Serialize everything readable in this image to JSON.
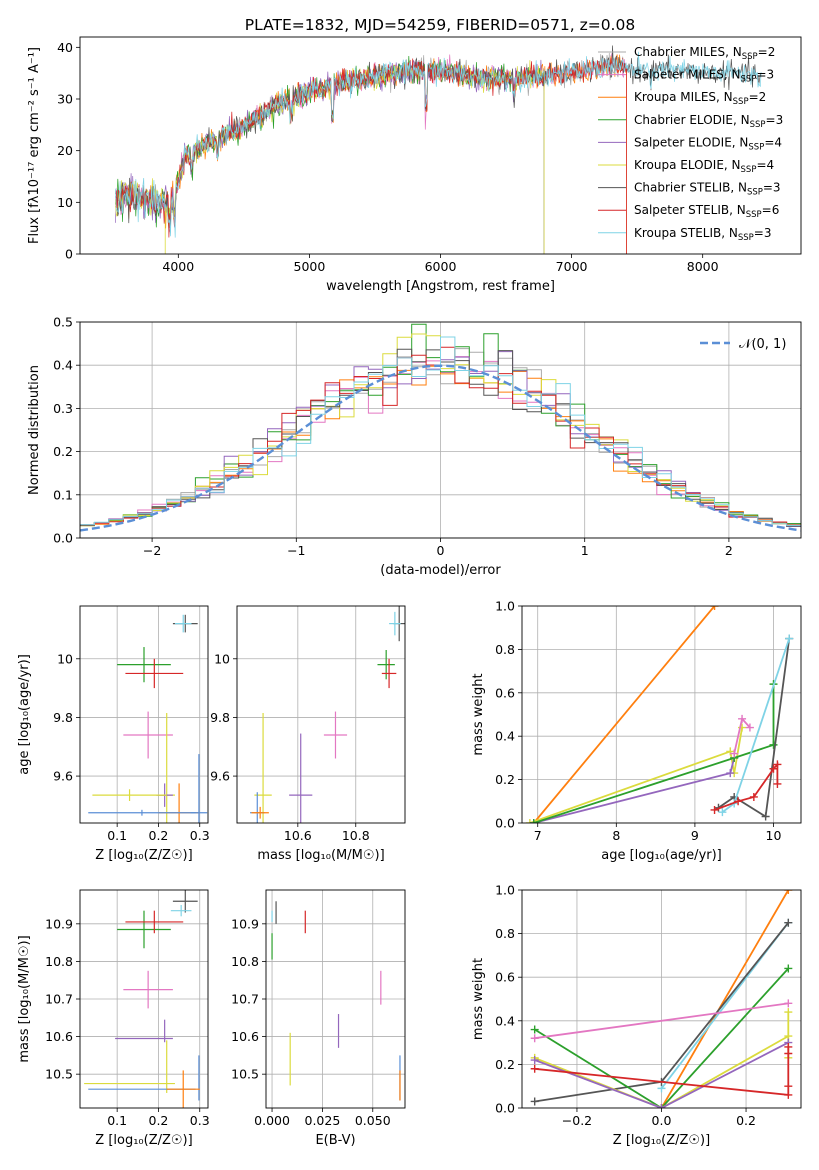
{
  "figure": {
    "title": "PLATE=1832, MJD=54259, FIBERID=0571, z=0.08"
  },
  "chart_data": [
    {
      "id": "spectrum",
      "type": "line",
      "xlabel": "wavelength [Angstrom, rest frame]",
      "ylabel": "Flux [fλ10⁻¹⁷ erg cm⁻² s⁻¹ A⁻¹]",
      "xlim": [
        3250,
        8750
      ],
      "ylim": [
        0,
        42
      ],
      "xticks": [
        4000,
        5000,
        6000,
        7000,
        8000
      ],
      "yticks": [
        0,
        10,
        20,
        30,
        40
      ],
      "grid": false,
      "legend_position": "right",
      "series": [
        {
          "name": "Chabrier MILES, N",
          "sub": "SSP",
          "suffix": "=2",
          "color": "#aaaaaa",
          "end": 7420
        },
        {
          "name": "Salpeter MILES, N",
          "sub": "SSP",
          "suffix": "=3",
          "color": "#e377c2",
          "end": 7420
        },
        {
          "name": "Kroupa MILES, N",
          "sub": "SSP",
          "suffix": "=2",
          "color": "#ff7f0e",
          "end": 7420
        },
        {
          "name": "Chabrier ELODIE, N",
          "sub": "SSP",
          "suffix": "=3",
          "color": "#2ca02c",
          "end": 6790
        },
        {
          "name": "Salpeter ELODIE, N",
          "sub": "SSP",
          "suffix": "=4",
          "color": "#9467bd",
          "end": 6790
        },
        {
          "name": "Kroupa ELODIE, N",
          "sub": "SSP",
          "suffix": "=4",
          "color": "#dbdb3d",
          "end": 6790
        },
        {
          "name": "Chabrier STELIB, N",
          "sub": "SSP",
          "suffix": "=3",
          "color": "#555555",
          "end": 8450
        },
        {
          "name": "Salpeter STELIB, N",
          "sub": "SSP",
          "suffix": "=6",
          "color": "#d62728",
          "end": 7420
        },
        {
          "name": "Kroupa STELIB, N",
          "sub": "SSP",
          "suffix": "=3",
          "color": "#7fd3e6",
          "end": 8450
        }
      ],
      "continuum": [
        [
          3520,
          10
        ],
        [
          3600,
          11.5
        ],
        [
          3700,
          11
        ],
        [
          3800,
          10.5
        ],
        [
          3900,
          9.5
        ],
        [
          3980,
          12
        ],
        [
          4050,
          18.5
        ],
        [
          4100,
          20
        ],
        [
          4200,
          21
        ],
        [
          4300,
          22.5
        ],
        [
          4400,
          23.5
        ],
        [
          4500,
          24.5
        ],
        [
          4600,
          26.5
        ],
        [
          4700,
          28
        ],
        [
          4800,
          29.5
        ],
        [
          4900,
          30.5
        ],
        [
          5000,
          31.5
        ],
        [
          5100,
          32
        ],
        [
          5200,
          33
        ],
        [
          5300,
          33.5
        ],
        [
          5400,
          34
        ],
        [
          5500,
          34.5
        ],
        [
          5600,
          35
        ],
        [
          5700,
          35
        ],
        [
          5800,
          35.5
        ],
        [
          5900,
          35.5
        ],
        [
          6000,
          35.5
        ],
        [
          6100,
          35
        ],
        [
          6200,
          34.5
        ],
        [
          6300,
          34
        ],
        [
          6400,
          34
        ],
        [
          6500,
          34
        ],
        [
          6600,
          34
        ],
        [
          6700,
          34.5
        ],
        [
          6800,
          34.5
        ],
        [
          6900,
          35
        ],
        [
          7000,
          35
        ],
        [
          7100,
          35.5
        ],
        [
          7200,
          36
        ],
        [
          7300,
          36.5
        ],
        [
          7400,
          36
        ],
        [
          7500,
          35.5
        ],
        [
          7600,
          35.5
        ],
        [
          7700,
          35.5
        ],
        [
          7800,
          35.5
        ],
        [
          7900,
          35.5
        ],
        [
          8000,
          35
        ],
        [
          8100,
          35
        ],
        [
          8200,
          35
        ],
        [
          8300,
          35
        ],
        [
          8400,
          34.5
        ],
        [
          8450,
          34
        ]
      ]
    },
    {
      "id": "residuals",
      "type": "histogram",
      "xlabel": "(data-model)/error",
      "ylabel": "Normed distribution",
      "xlim": [
        -2.5,
        2.5
      ],
      "ylim": [
        0,
        0.5
      ],
      "xticks": [
        -2,
        -1,
        0,
        1,
        2
      ],
      "yticks": [
        0.0,
        0.1,
        0.2,
        0.3,
        0.4,
        0.5
      ],
      "grid": true,
      "legend_position": "top-right",
      "reference_label": "𝒩(0, 1)",
      "reference_color": "#5b8fd6",
      "bins": 50,
      "series_colors": [
        "#aaaaaa",
        "#e377c2",
        "#ff7f0e",
        "#2ca02c",
        "#9467bd",
        "#dbdb3d",
        "#555555",
        "#d62728",
        "#7fd3e6"
      ]
    },
    {
      "id": "age-vs-Z",
      "type": "errorbar",
      "xlabel": "Z [log₁₀(Z/Z☉)]",
      "ylabel": "age  [log₁₀(age/yr)]",
      "xlim": [
        0.01,
        0.32
      ],
      "ylim": [
        9.44,
        10.18
      ],
      "xticks": [
        0.1,
        0.2,
        0.3
      ],
      "yticks": [
        9.6,
        9.8,
        10.0
      ],
      "grid": true,
      "points": [
        {
          "x": 0.165,
          "y": 9.98,
          "xerr": 0.065,
          "yerr": 0.06,
          "color": "#2ca02c"
        },
        {
          "x": 0.19,
          "y": 9.95,
          "xerr": 0.07,
          "yerr": 0.05,
          "color": "#d62728"
        },
        {
          "x": 0.265,
          "y": 10.12,
          "xerr": 0.03,
          "yerr": 0.03,
          "color": "#555555"
        },
        {
          "x": 0.26,
          "y": 10.12,
          "xerr": 0.02,
          "yerr": 0.03,
          "color": "#7fd3e6"
        },
        {
          "x": 0.175,
          "y": 9.74,
          "xerr": 0.06,
          "yerr": 0.08,
          "color": "#e377c2"
        },
        {
          "x": 0.22,
          "y": 9.535,
          "xerr": 0.02,
          "yerr": 0.28,
          "color": "#dbdb3d"
        },
        {
          "x": 0.215,
          "y": 9.535,
          "xerr": 0.02,
          "yerr": 0.04,
          "color": "#9467bd"
        },
        {
          "x": 0.25,
          "y": 9.475,
          "xerr": 0.05,
          "yerr": 0.1,
          "color": "#ff7f0e"
        },
        {
          "x": 0.298,
          "y": 9.475,
          "xerr": 0.02,
          "yerr": 0.2,
          "color": "#5b8fd6"
        },
        {
          "x": 0.13,
          "y": 9.535,
          "xerr": 0.09,
          "yerr": 0.02,
          "color": "#dbdb3d"
        },
        {
          "x": 0.16,
          "y": 9.475,
          "xerr": 0.13,
          "yerr": 0.01,
          "color": "#5b8fd6"
        }
      ]
    },
    {
      "id": "age-vs-mass",
      "type": "errorbar",
      "xlabel": "mass [log₁₀(M/M☉)]",
      "ylabel": "",
      "xlim": [
        10.39,
        10.97
      ],
      "ylim": [
        9.44,
        10.18
      ],
      "xticks": [
        10.6,
        10.8
      ],
      "yticks": [
        9.6,
        9.8,
        10.0
      ],
      "grid": true,
      "points": [
        {
          "x": 10.905,
          "y": 9.98,
          "xerr": 0.03,
          "yerr": 0.05,
          "color": "#2ca02c"
        },
        {
          "x": 10.915,
          "y": 9.95,
          "xerr": 0.025,
          "yerr": 0.05,
          "color": "#d62728"
        },
        {
          "x": 10.95,
          "y": 10.12,
          "xerr": 0.02,
          "yerr": 0.06,
          "color": "#555555"
        },
        {
          "x": 10.935,
          "y": 10.12,
          "xerr": 0.02,
          "yerr": 0.04,
          "color": "#7fd3e6"
        },
        {
          "x": 10.73,
          "y": 9.74,
          "xerr": 0.04,
          "yerr": 0.08,
          "color": "#e377c2"
        },
        {
          "x": 10.61,
          "y": 9.535,
          "xerr": 0.04,
          "yerr": 0.21,
          "color": "#9467bd"
        },
        {
          "x": 10.48,
          "y": 9.535,
          "xerr": 0.03,
          "yerr": 0.28,
          "color": "#dbdb3d"
        },
        {
          "x": 10.46,
          "y": 9.475,
          "xerr": 0.025,
          "yerr": 0.07,
          "color": "#5b8fd6"
        },
        {
          "x": 10.47,
          "y": 9.475,
          "xerr": 0.03,
          "yerr": 0.02,
          "color": "#ff7f0e"
        }
      ]
    },
    {
      "id": "mass-weight-vs-age",
      "type": "line",
      "xlabel": "age  [log₁₀(age/yr)]",
      "ylabel": "mass weight",
      "xlim": [
        6.8,
        10.35
      ],
      "ylim": [
        0,
        1
      ],
      "xticks": [
        7,
        8,
        9,
        10
      ],
      "yticks": [
        0.0,
        0.2,
        0.4,
        0.6,
        0.8,
        1.0
      ],
      "grid": true,
      "series": [
        {
          "color": "#ff7f0e",
          "points": [
            [
              6.95,
              0.0
            ],
            [
              9.25,
              1.0
            ]
          ]
        },
        {
          "color": "#dbdb3d",
          "points": [
            [
              6.9,
              0.0
            ],
            [
              9.45,
              0.33
            ],
            [
              9.5,
              0.23
            ],
            [
              9.6,
              0.44
            ]
          ]
        },
        {
          "color": "#9467bd",
          "points": [
            [
              6.95,
              0.0
            ],
            [
              9.45,
              0.23
            ],
            [
              9.5,
              0.3
            ]
          ]
        },
        {
          "color": "#2ca02c",
          "points": [
            [
              6.95,
              0.0
            ],
            [
              9.5,
              0.3
            ],
            [
              10.0,
              0.36
            ],
            [
              10.0,
              0.64
            ]
          ]
        },
        {
          "color": "#555555",
          "points": [
            [
              9.3,
              0.07
            ],
            [
              9.5,
              0.12
            ],
            [
              9.9,
              0.03
            ],
            [
              10.2,
              0.85
            ]
          ]
        },
        {
          "color": "#7fd3e6",
          "points": [
            [
              9.35,
              0.05
            ],
            [
              9.5,
              0.09
            ],
            [
              10.2,
              0.85
            ]
          ]
        },
        {
          "color": "#d62728",
          "points": [
            [
              9.25,
              0.06
            ],
            [
              9.55,
              0.1
            ],
            [
              9.75,
              0.12
            ],
            [
              10.0,
              0.25
            ],
            [
              10.05,
              0.27
            ],
            [
              10.05,
              0.18
            ]
          ]
        },
        {
          "color": "#e377c2",
          "points": [
            [
              9.5,
              0.32
            ],
            [
              9.6,
              0.48
            ],
            [
              9.7,
              0.44
            ]
          ]
        }
      ]
    },
    {
      "id": "mass-vs-Z",
      "type": "errorbar",
      "xlabel": "Z [log₁₀(Z/Z☉)]",
      "ylabel": "mass [log₁₀(M/M☉)]",
      "xlim": [
        0.01,
        0.32
      ],
      "ylim": [
        10.41,
        10.99
      ],
      "xticks": [
        0.1,
        0.2,
        0.3
      ],
      "yticks": [
        10.5,
        10.6,
        10.7,
        10.8,
        10.9
      ],
      "grid": true,
      "points": [
        {
          "x": 0.165,
          "y": 10.885,
          "xerr": 0.065,
          "yerr": 0.05,
          "color": "#2ca02c"
        },
        {
          "x": 0.19,
          "y": 10.905,
          "xerr": 0.07,
          "yerr": 0.03,
          "color": "#d62728"
        },
        {
          "x": 0.265,
          "y": 10.96,
          "xerr": 0.03,
          "yerr": 0.03,
          "color": "#555555"
        },
        {
          "x": 0.255,
          "y": 10.935,
          "xerr": 0.025,
          "yerr": 0.015,
          "color": "#7fd3e6"
        },
        {
          "x": 0.175,
          "y": 10.725,
          "xerr": 0.06,
          "yerr": 0.05,
          "color": "#e377c2"
        },
        {
          "x": 0.165,
          "y": 10.595,
          "xerr": 0.07,
          "yerr": 0.0,
          "color": "#9467bd"
        },
        {
          "x": 0.215,
          "y": 10.615,
          "xerr": 0.0,
          "yerr": 0.03,
          "color": "#9467bd"
        },
        {
          "x": 0.22,
          "y": 10.52,
          "xerr": 0.0,
          "yerr": 0.07,
          "color": "#dbdb3d"
        },
        {
          "x": 0.13,
          "y": 10.475,
          "xerr": 0.11,
          "yerr": 0.0,
          "color": "#dbdb3d"
        },
        {
          "x": 0.16,
          "y": 10.46,
          "xerr": 0.13,
          "yerr": 0.0,
          "color": "#5b8fd6"
        },
        {
          "x": 0.298,
          "y": 10.49,
          "xerr": 0.0,
          "yerr": 0.06,
          "color": "#5b8fd6"
        },
        {
          "x": 0.26,
          "y": 10.46,
          "xerr": 0.04,
          "yerr": 0.05,
          "color": "#ff7f0e"
        }
      ]
    },
    {
      "id": "mass-vs-ebv",
      "type": "errorbar",
      "xlabel": "E(B-V)",
      "ylabel": "",
      "xlim": [
        -0.003,
        0.066
      ],
      "ylim": [
        10.41,
        10.99
      ],
      "xticks": [
        0.0,
        0.025,
        0.05
      ],
      "xtick_labels": [
        "0.000",
        "0.025",
        "0.050"
      ],
      "yticks": [
        10.5,
        10.6,
        10.7,
        10.8,
        10.9
      ],
      "grid": true,
      "points": [
        {
          "x": 0.0,
          "y": 10.84,
          "xerr": 0,
          "yerr": 0.035,
          "color": "#2ca02c"
        },
        {
          "x": 0.002,
          "y": 10.93,
          "xerr": 0,
          "yerr": 0.03,
          "color": "#555555"
        },
        {
          "x": 0.0,
          "y": 10.92,
          "xerr": 0,
          "yerr": 0.015,
          "color": "#7fd3e6"
        },
        {
          "x": 0.0165,
          "y": 10.905,
          "xerr": 0,
          "yerr": 0.03,
          "color": "#d62728"
        },
        {
          "x": 0.009,
          "y": 10.54,
          "xerr": 0,
          "yerr": 0.07,
          "color": "#dbdb3d"
        },
        {
          "x": 0.033,
          "y": 10.615,
          "xerr": 0,
          "yerr": 0.045,
          "color": "#9467bd"
        },
        {
          "x": 0.054,
          "y": 10.73,
          "xerr": 0,
          "yerr": 0.045,
          "color": "#e377c2"
        },
        {
          "x": 0.0635,
          "y": 10.49,
          "xerr": 0,
          "yerr": 0.06,
          "color": "#5b8fd6"
        },
        {
          "x": 0.0635,
          "y": 10.47,
          "xerr": 0,
          "yerr": 0.04,
          "color": "#ff7f0e"
        }
      ]
    },
    {
      "id": "mass-weight-vs-Z",
      "type": "line",
      "xlabel": "Z [log₁₀(Z/Z☉)]",
      "ylabel": "mass weight",
      "xlim": [
        -0.33,
        0.33
      ],
      "ylim": [
        0,
        1
      ],
      "xticks": [
        -0.2,
        0.0,
        0.2
      ],
      "xtick_labels": [
        "−0.2",
        "0.0",
        "0.2"
      ],
      "yticks": [
        0.0,
        0.2,
        0.4,
        0.6,
        0.8,
        1.0
      ],
      "grid": true,
      "series": [
        {
          "color": "#ff7f0e",
          "points": [
            [
              0.0,
              0.0
            ],
            [
              0.3,
              1.0
            ]
          ]
        },
        {
          "color": "#7fd3e6",
          "points": [
            [
              0.0,
              0.09
            ],
            [
              0.3,
              0.85
            ]
          ]
        },
        {
          "color": "#555555",
          "points": [
            [
              -0.3,
              0.03
            ],
            [
              0.0,
              0.12
            ],
            [
              0.3,
              0.85
            ]
          ]
        },
        {
          "color": "#2ca02c",
          "points": [
            [
              -0.3,
              0.36
            ],
            [
              0.0,
              0.0
            ],
            [
              0.3,
              0.64
            ]
          ]
        },
        {
          "color": "#e377c2",
          "points": [
            [
              -0.3,
              0.32
            ],
            [
              0.3,
              0.48
            ]
          ]
        },
        {
          "color": "#dbdb3d",
          "points": [
            [
              -0.3,
              0.23
            ],
            [
              0.0,
              0.0
            ],
            [
              0.3,
              0.33
            ],
            [
              0.3,
              0.44
            ],
            [
              0.3,
              0.23
            ]
          ]
        },
        {
          "color": "#9467bd",
          "points": [
            [
              -0.3,
              0.22
            ],
            [
              0.0,
              0.0
            ],
            [
              0.3,
              0.3
            ]
          ]
        },
        {
          "color": "#d62728",
          "points": [
            [
              -0.3,
              0.18
            ],
            [
              0.3,
              0.06
            ],
            [
              0.3,
              0.28
            ],
            [
              0.3,
              0.25
            ],
            [
              0.3,
              0.1
            ]
          ]
        }
      ]
    }
  ]
}
